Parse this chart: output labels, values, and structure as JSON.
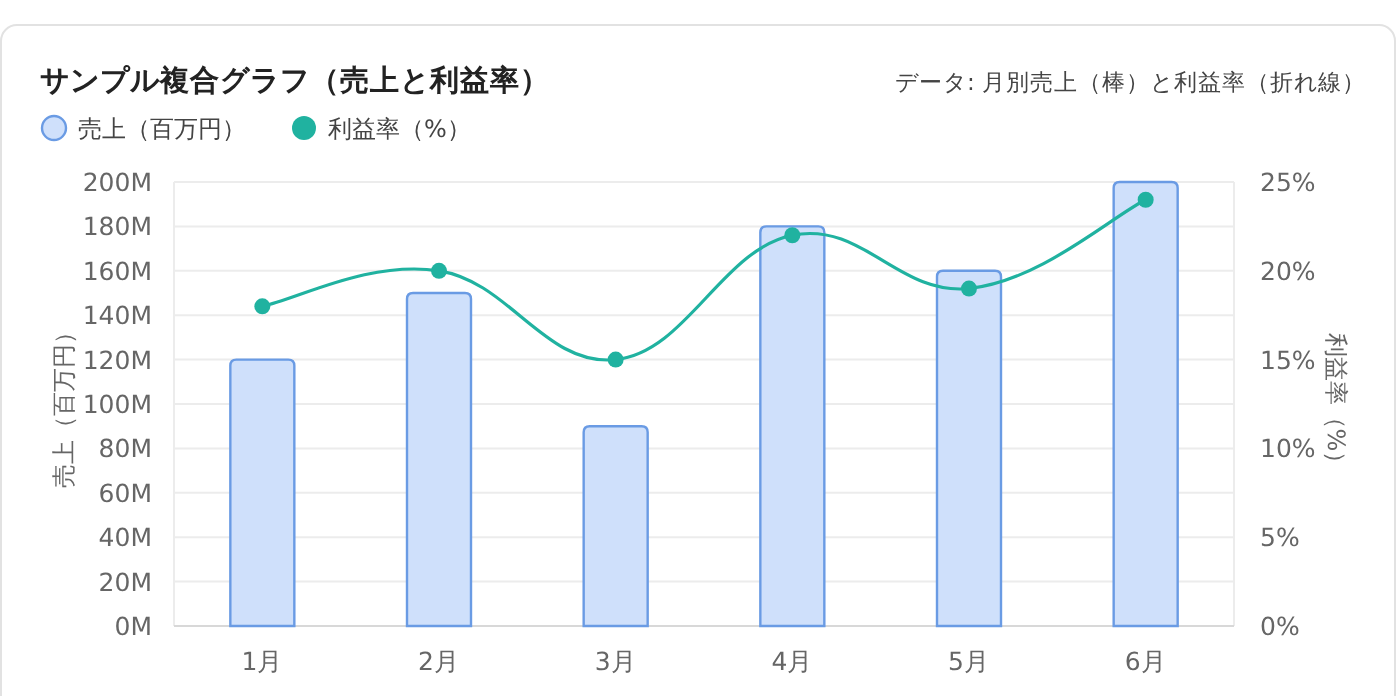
{
  "chart_data": {
    "type": "bar",
    "title": "サンプル複合グラフ（売上と利益率）",
    "subtitle": "データ: 月別売上（棒）と利益率（折れ線）",
    "ylabel": "売上（百万円）",
    "y2label": "利益率（%）",
    "categories": [
      "1月",
      "2月",
      "3月",
      "4月",
      "5月",
      "6月"
    ],
    "series": [
      {
        "name": "売上（百万円）",
        "color": "#cfe0fb",
        "values": [
          120000000,
          150000000,
          90000000,
          180000000,
          160000000,
          200000000
        ]
      },
      {
        "name": "利益率（%）",
        "type": "line",
        "axis": "y2",
        "color": "#20b2a0",
        "values": [
          18,
          20,
          15,
          22,
          19,
          24
        ]
      }
    ],
    "ylim": [
      0,
      200000000
    ],
    "yticks": [
      {
        "value": 0,
        "label": "0M"
      },
      {
        "value": 20000000,
        "label": "20M"
      },
      {
        "value": 40000000,
        "label": "40M"
      },
      {
        "value": 60000000,
        "label": "60M"
      },
      {
        "value": 80000000,
        "label": "80M"
      },
      {
        "value": 100000000,
        "label": "100M"
      },
      {
        "value": 120000000,
        "label": "120M"
      },
      {
        "value": 140000000,
        "label": "140M"
      },
      {
        "value": 160000000,
        "label": "160M"
      },
      {
        "value": 180000000,
        "label": "180M"
      },
      {
        "value": 200000000,
        "label": "200M"
      }
    ],
    "y2lim": [
      0,
      25
    ],
    "y2ticks": [
      {
        "value": 0,
        "label": "0%"
      },
      {
        "value": 5,
        "label": "5%"
      },
      {
        "value": 10,
        "label": "10%"
      },
      {
        "value": 15,
        "label": "15%"
      },
      {
        "value": 20,
        "label": "20%"
      },
      {
        "value": 25,
        "label": "25%"
      }
    ],
    "grid": "y",
    "legend": "top left",
    "marker": "circle",
    "line_style": "solid"
  }
}
